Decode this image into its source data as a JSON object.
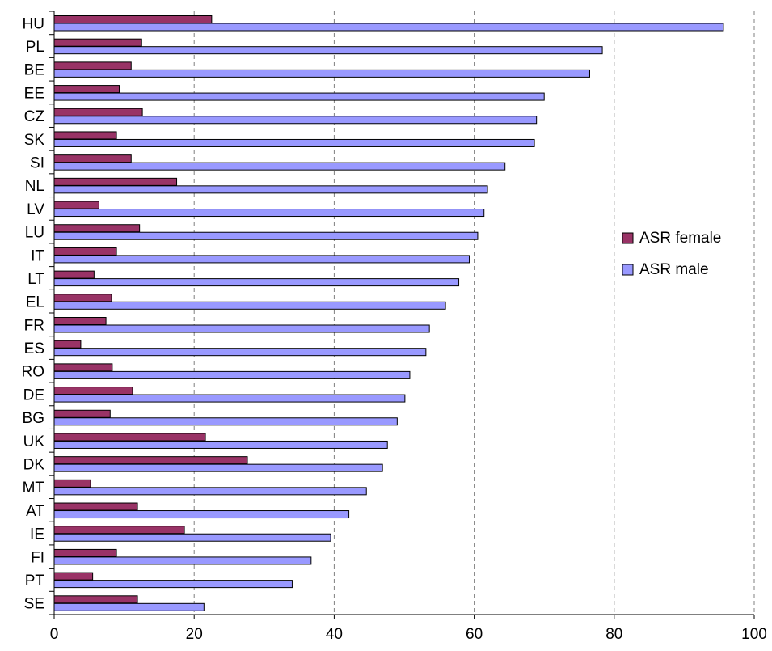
{
  "chart_data": {
    "type": "bar",
    "orientation": "horizontal",
    "categories": [
      "HU",
      "PL",
      "BE",
      "EE",
      "CZ",
      "SK",
      "SI",
      "NL",
      "LV",
      "LU",
      "IT",
      "LT",
      "EL",
      "FR",
      "ES",
      "RO",
      "DE",
      "BG",
      "UK",
      "DK",
      "MT",
      "AT",
      "IE",
      "FI",
      "PT",
      "SE"
    ],
    "series": [
      {
        "name": "ASR female",
        "color": "#993366",
        "values": [
          22.5,
          12.5,
          11,
          9.3,
          12.6,
          8.9,
          11,
          17.5,
          6.4,
          12.2,
          8.9,
          5.7,
          8.2,
          7.4,
          3.8,
          8.3,
          11.2,
          8,
          21.6,
          27.6,
          5.2,
          11.9,
          18.6,
          8.9,
          5.5,
          11.9
        ]
      },
      {
        "name": "ASR male",
        "color": "#9999FF",
        "values": [
          95.6,
          78.3,
          76.5,
          70,
          68.9,
          68.6,
          64.4,
          61.9,
          61.4,
          60.5,
          59.3,
          57.8,
          55.9,
          53.6,
          53.1,
          50.8,
          50.1,
          49,
          47.6,
          46.9,
          44.6,
          42.1,
          39.5,
          36.7,
          34,
          21.4
        ]
      }
    ],
    "x_ticks": [
      "0",
      "20",
      "40",
      "60",
      "80",
      "100"
    ],
    "xlim": [
      0,
      100
    ],
    "grid": "vertical dashed",
    "legend_position": "right",
    "title": "",
    "xlabel": "",
    "ylabel": ""
  }
}
